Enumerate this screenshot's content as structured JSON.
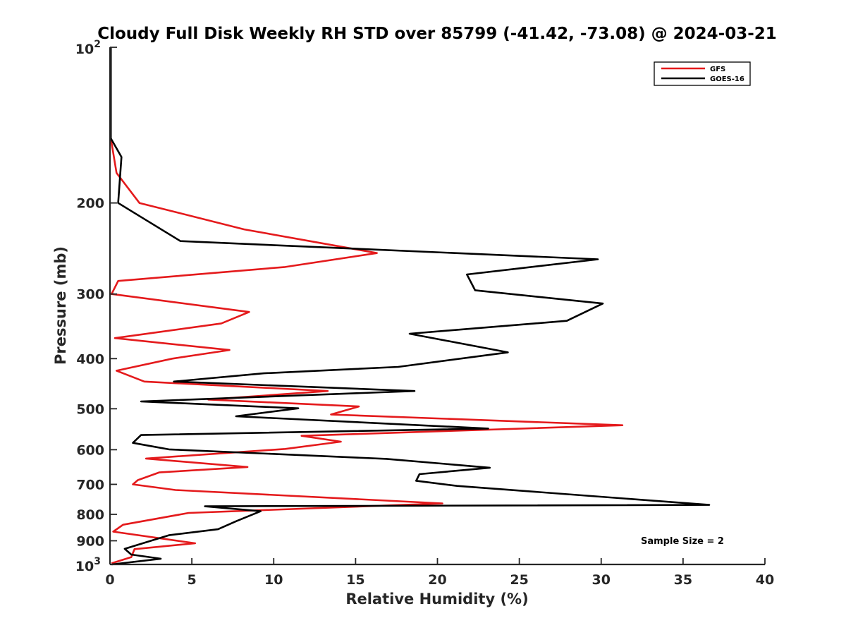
{
  "chart_data": {
    "type": "line",
    "title": "Cloudy Full Disk Weekly RH STD over 85799 (-41.42, -73.08) @ 2024-03-21",
    "xlabel": "Relative Humidity (%)",
    "ylabel": "Pressure (mb)",
    "xlim": [
      0,
      40
    ],
    "ylim": [
      100,
      1000
    ],
    "y_scale": "log",
    "y_reversed": true,
    "grid": false,
    "legend_position": "top-right",
    "x_ticks": [
      "0",
      "5",
      "10",
      "15",
      "20",
      "25",
      "30",
      "35",
      "40"
    ],
    "y_ticks": [
      {
        "value": 100,
        "base": "10",
        "exp": "2"
      },
      {
        "value": 200,
        "label": "200"
      },
      {
        "value": 300,
        "label": "300"
      },
      {
        "value": 400,
        "label": "400"
      },
      {
        "value": 500,
        "label": "500"
      },
      {
        "value": 600,
        "label": "600"
      },
      {
        "value": 700,
        "label": "700"
      },
      {
        "value": 800,
        "label": "800"
      },
      {
        "value": 900,
        "label": "900"
      },
      {
        "value": 1000,
        "base": "10",
        "exp": "3"
      }
    ],
    "series": [
      {
        "name": "GFS",
        "color": "#e41a1c",
        "points": [
          [
            0.05,
            100
          ],
          [
            0.05,
            150
          ],
          [
            0.4,
            175
          ],
          [
            1.8,
            200
          ],
          [
            8.2,
            225
          ],
          [
            16.3,
            250
          ],
          [
            10.7,
            266
          ],
          [
            0.5,
            283
          ],
          [
            0.1,
            300
          ],
          [
            8.5,
            325
          ],
          [
            6.8,
            342
          ],
          [
            0.3,
            365
          ],
          [
            7.3,
            385
          ],
          [
            3.8,
            400
          ],
          [
            0.4,
            422
          ],
          [
            2.1,
            443
          ],
          [
            13.3,
            462
          ],
          [
            6.0,
            480
          ],
          [
            15.2,
            495
          ],
          [
            13.5,
            513
          ],
          [
            31.3,
            538
          ],
          [
            11.7,
            564
          ],
          [
            14.1,
            579
          ],
          [
            10.7,
            598
          ],
          [
            2.2,
            624
          ],
          [
            8.4,
            648
          ],
          [
            3.0,
            664
          ],
          [
            1.7,
            687
          ],
          [
            1.4,
            700
          ],
          [
            4.0,
            718
          ],
          [
            20.3,
            762
          ],
          [
            4.8,
            795
          ],
          [
            0.8,
            838
          ],
          [
            0.2,
            864
          ],
          [
            5.2,
            910
          ],
          [
            1.5,
            934
          ],
          [
            1.3,
            968
          ],
          [
            0.1,
            995
          ]
        ]
      },
      {
        "name": "GOES-16",
        "color": "#000000",
        "points": [
          [
            0.05,
            100
          ],
          [
            0.05,
            150
          ],
          [
            0.7,
            163
          ],
          [
            0.5,
            200
          ],
          [
            1.8,
            212
          ],
          [
            4.3,
            237
          ],
          [
            29.8,
            257
          ],
          [
            21.8,
            275
          ],
          [
            22.3,
            295
          ],
          [
            30.1,
            313
          ],
          [
            27.9,
            338
          ],
          [
            18.3,
            358
          ],
          [
            24.3,
            389
          ],
          [
            17.6,
            415
          ],
          [
            9.4,
            427
          ],
          [
            3.9,
            443
          ],
          [
            18.6,
            462
          ],
          [
            1.9,
            484
          ],
          [
            11.5,
            499
          ],
          [
            7.7,
            517
          ],
          [
            23.1,
            546
          ],
          [
            1.9,
            562
          ],
          [
            1.4,
            582
          ],
          [
            3.6,
            599
          ],
          [
            16.9,
            625
          ],
          [
            23.2,
            650
          ],
          [
            18.9,
            669
          ],
          [
            18.7,
            689
          ],
          [
            21.2,
            705
          ],
          [
            36.6,
            767
          ],
          [
            5.8,
            772
          ],
          [
            9.2,
            789
          ],
          [
            7.7,
            825
          ],
          [
            6.6,
            855
          ],
          [
            3.6,
            878
          ],
          [
            0.9,
            933
          ],
          [
            1.3,
            957
          ],
          [
            3.1,
            975
          ],
          [
            0.1,
            1000
          ]
        ]
      }
    ],
    "annotations": [
      "Sample Size = 2"
    ]
  }
}
